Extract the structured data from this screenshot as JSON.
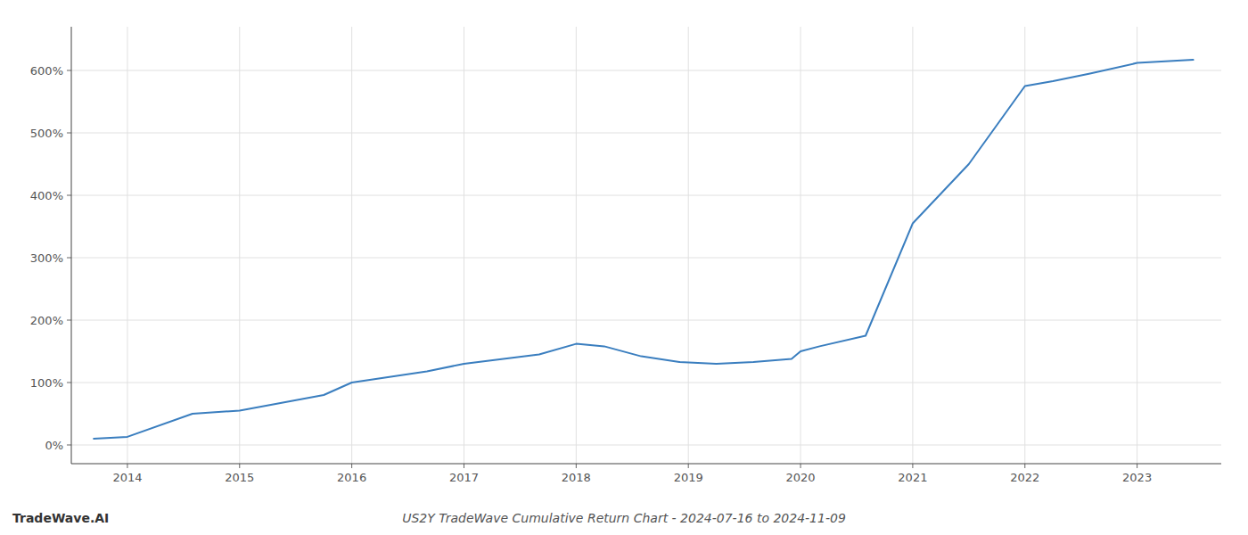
{
  "chart_data": {
    "type": "line",
    "title": "US2Y TradeWave Cumulative Return Chart - 2024-07-16 to 2024-11-09",
    "annotations": [
      "TradeWave.AI"
    ],
    "x": [
      2013.7,
      2014.0,
      2014.58,
      2015.0,
      2015.75,
      2016.0,
      2016.67,
      2017.0,
      2017.67,
      2018.0,
      2018.25,
      2018.58,
      2018.92,
      2019.25,
      2019.58,
      2019.92,
      2020.0,
      2020.17,
      2020.58,
      2021.0,
      2021.5,
      2022.0,
      2022.25,
      2022.58,
      2023.0,
      2023.5
    ],
    "values": [
      10,
      13,
      50,
      55,
      80,
      100,
      118,
      130,
      145,
      162,
      158,
      142,
      133,
      130,
      133,
      138,
      150,
      158,
      175,
      355,
      450,
      575,
      583,
      595,
      612,
      617
    ],
    "color": "#3a7ebf",
    "xlim": [
      2013.5,
      2023.75
    ],
    "ylim": [
      -30,
      670
    ],
    "xticks": [
      2014,
      2015,
      2016,
      2017,
      2018,
      2019,
      2020,
      2021,
      2022,
      2023
    ],
    "yticks": [
      {
        "value": 0,
        "label": "0%"
      },
      {
        "value": 100,
        "label": "100%"
      },
      {
        "value": 200,
        "label": "200%"
      },
      {
        "value": 300,
        "label": "300%"
      },
      {
        "value": 400,
        "label": "400%"
      },
      {
        "value": 500,
        "label": "500%"
      },
      {
        "value": 600,
        "label": "600%"
      }
    ],
    "grid": true
  }
}
